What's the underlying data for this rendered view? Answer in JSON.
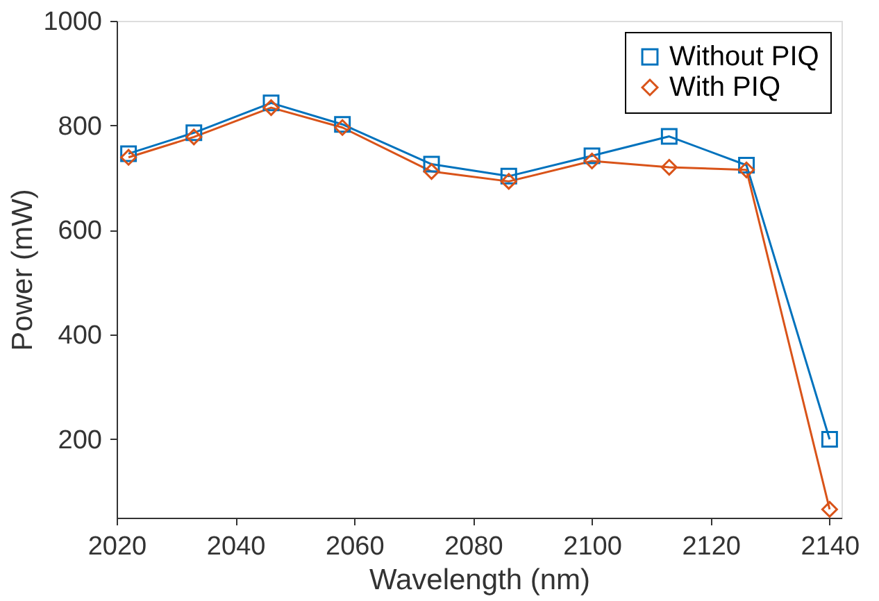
{
  "chart_data": {
    "type": "line",
    "xlabel": "Wavelength (nm)",
    "ylabel": "Power (mW)",
    "x": [
      2022,
      2033,
      2046,
      2058,
      2073,
      2086,
      2100,
      2113,
      2126,
      2140
    ],
    "series": [
      {
        "name": "Without PIQ",
        "color": "#0072bd",
        "marker": "square",
        "values": [
          746,
          786,
          843,
          802,
          726,
          703,
          742,
          779,
          724,
          200
        ]
      },
      {
        "name": "With PIQ",
        "color": "#d95319",
        "marker": "diamond",
        "values": [
          739,
          778,
          834,
          796,
          712,
          693,
          732,
          720,
          715,
          66
        ]
      }
    ],
    "xlim": [
      2020,
      2142
    ],
    "xticks": [
      2020,
      2040,
      2060,
      2080,
      2100,
      2120,
      2140
    ],
    "ylim": [
      50,
      1000
    ],
    "yticks": [
      200,
      400,
      600,
      800,
      1000
    ],
    "grid": false,
    "legend": "top right",
    "line_style": "solid"
  }
}
